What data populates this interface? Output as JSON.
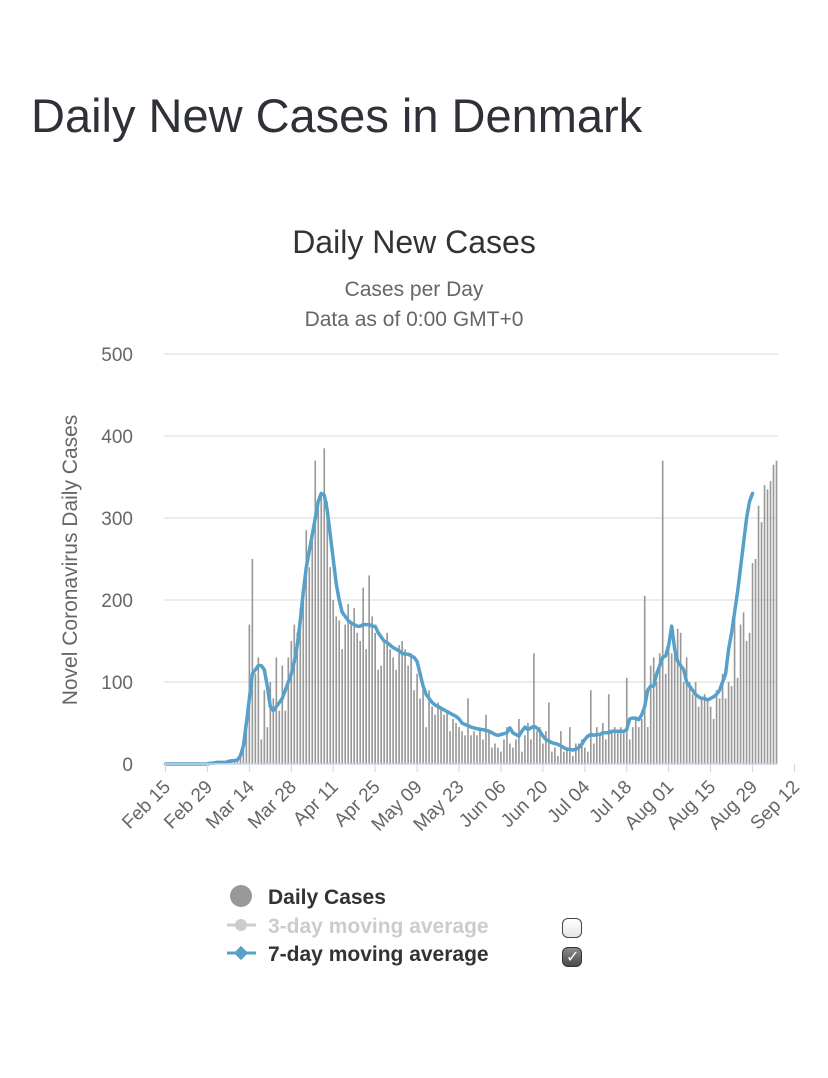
{
  "page": {
    "heading": "Daily New Cases in Denmark"
  },
  "chart_data": {
    "type": "bar",
    "title": "Daily New Cases",
    "subtitle_lines": [
      "Cases per Day",
      "Data as of 0:00 GMT+0"
    ],
    "ylabel": "Novel Coronavirus Daily Cases",
    "xlabel": "",
    "ylim": [
      0,
      500
    ],
    "y_ticks": [
      0,
      100,
      200,
      300,
      400,
      500
    ],
    "x_ticks": [
      "Feb 15",
      "Feb 29",
      "Mar 14",
      "Mar 28",
      "Apr 11",
      "Apr 25",
      "May 09",
      "May 23",
      "Jun 06",
      "Jun 20",
      "Jul 04",
      "Jul 18",
      "Aug 01",
      "Aug 15",
      "Aug 29",
      "Sep 12"
    ],
    "grid": true,
    "start_date": "Feb 15",
    "series": [
      {
        "name": "Daily Cases",
        "kind": "bar",
        "color": "#999999",
        "values": [
          0,
          0,
          0,
          0,
          0,
          0,
          0,
          0,
          0,
          0,
          0,
          0,
          0,
          0,
          0,
          1,
          0,
          2,
          1,
          3,
          2,
          3,
          5,
          5,
          3,
          10,
          24,
          51,
          170,
          250,
          110,
          130,
          30,
          90,
          45,
          100,
          80,
          130,
          65,
          120,
          65,
          130,
          150,
          170,
          160,
          190,
          200,
          285,
          240,
          280,
          370,
          320,
          330,
          385,
          320,
          240,
          200,
          180,
          175,
          140,
          170,
          195,
          170,
          190,
          160,
          150,
          215,
          140,
          230,
          180,
          160,
          115,
          120,
          150,
          160,
          140,
          130,
          115,
          145,
          150,
          140,
          120,
          135,
          90,
          110,
          80,
          90,
          45,
          90,
          70,
          60,
          75,
          70,
          60,
          65,
          40,
          55,
          50,
          45,
          40,
          35,
          80,
          35,
          40,
          35,
          45,
          30,
          60,
          40,
          20,
          25,
          20,
          15,
          30,
          45,
          25,
          20,
          30,
          55,
          15,
          35,
          50,
          30,
          135,
          40,
          45,
          25,
          40,
          75,
          15,
          20,
          10,
          40,
          15,
          20,
          45,
          10,
          25,
          25,
          30,
          20,
          15,
          90,
          25,
          45,
          35,
          50,
          30,
          85,
          40,
          45,
          40,
          45,
          40,
          105,
          30,
          45,
          55,
          45,
          55,
          205,
          45,
          120,
          130,
          100,
          135,
          370,
          110,
          140,
          135,
          140,
          165,
          160,
          100,
          130,
          100,
          85,
          100,
          70,
          80,
          85,
          80,
          70,
          55,
          90,
          80,
          110,
          80,
          100,
          95,
          180,
          105,
          170,
          185,
          150,
          160,
          245,
          250,
          315,
          295,
          340,
          335,
          345,
          365,
          370
        ]
      },
      {
        "name": "3-day moving average",
        "kind": "line",
        "color": "#cccccc",
        "visible": false
      },
      {
        "name": "7-day moving average",
        "kind": "line",
        "color": "#56a0c9",
        "visible": true,
        "values": [
          0,
          0,
          0,
          0,
          0,
          0,
          0,
          0,
          0,
          0,
          0,
          0,
          0,
          0,
          0,
          1,
          1,
          2,
          2,
          2,
          2,
          3,
          4,
          4,
          5,
          10,
          22,
          50,
          80,
          110,
          115,
          120,
          120,
          115,
          95,
          70,
          65,
          70,
          75,
          80,
          90,
          100,
          110,
          125,
          145,
          175,
          210,
          240,
          260,
          280,
          300,
          320,
          330,
          328,
          310,
          280,
          250,
          220,
          200,
          185,
          180,
          175,
          172,
          170,
          168,
          168,
          170,
          170,
          170,
          168,
          168,
          160,
          155,
          150,
          148,
          145,
          142,
          140,
          138,
          135,
          134,
          134,
          132,
          130,
          125,
          110,
          95,
          85,
          80,
          75,
          72,
          70,
          68,
          66,
          64,
          62,
          60,
          58,
          55,
          50,
          48,
          47,
          45,
          44,
          43,
          42,
          42,
          41,
          40,
          38,
          36,
          35,
          36,
          37,
          38,
          44,
          38,
          36,
          34,
          40,
          45,
          42,
          44,
          46,
          44,
          40,
          34,
          30,
          28,
          26,
          25,
          24,
          22,
          20,
          18,
          18,
          17,
          18,
          20,
          24,
          30,
          34,
          36,
          35,
          36,
          36,
          38,
          38,
          38,
          40,
          40,
          40,
          40,
          40,
          42,
          55,
          56,
          56,
          54,
          60,
          70,
          90,
          95,
          95,
          110,
          120,
          130,
          132,
          145,
          168,
          140,
          125,
          120,
          115,
          100,
          95,
          90,
          85,
          82,
          80,
          80,
          78,
          80,
          82,
          85,
          90,
          100,
          110,
          140,
          160,
          185,
          210,
          240,
          270,
          300,
          320,
          330
        ]
      }
    ]
  },
  "legend": {
    "items": [
      {
        "label": "Daily Cases",
        "color": "#333333",
        "marker_color": "#999999",
        "checkbox": false
      },
      {
        "label": "3-day moving average",
        "color": "#cccccc",
        "marker_color": "#cccccc",
        "checkbox": true,
        "checked": false
      },
      {
        "label": "7-day moving average",
        "color": "#333333",
        "marker_color": "#56a0c9",
        "checkbox": true,
        "checked": true
      }
    ]
  }
}
